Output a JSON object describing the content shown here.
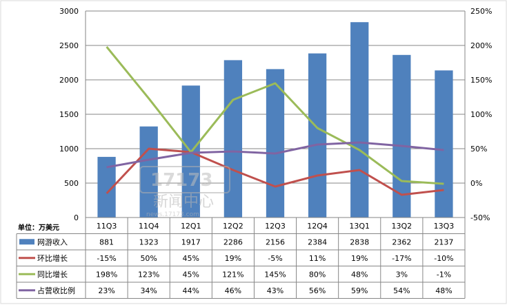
{
  "chart_data": {
    "type": "bar",
    "unit_label": "单位：万美元",
    "categories": [
      "11Q3",
      "11Q4",
      "12Q1",
      "12Q2",
      "12Q3",
      "12Q4",
      "13Q1",
      "13Q2",
      "13Q3"
    ],
    "y_left": {
      "min": 0,
      "max": 3000,
      "ticks": [
        "0",
        "500",
        "1000",
        "1500",
        "2000",
        "2500",
        "3000"
      ]
    },
    "y_right": {
      "min": -50,
      "max": 250,
      "ticks": [
        "-50%",
        "0%",
        "50%",
        "100%",
        "150%",
        "200%",
        "250%"
      ]
    },
    "series": [
      {
        "name": "网游收入",
        "kind": "bar",
        "axis": "left",
        "color": "#4f81bd",
        "values": [
          881,
          1323,
          1917,
          2286,
          2156,
          2384,
          2838,
          2362,
          2137
        ],
        "labels": [
          "881",
          "1323",
          "1917",
          "2286",
          "2156",
          "2384",
          "2838",
          "2362",
          "2137"
        ]
      },
      {
        "name": "环比增长",
        "kind": "line",
        "axis": "right",
        "color": "#c0504d",
        "values": [
          -15,
          50,
          45,
          19,
          -5,
          11,
          19,
          -17,
          -10
        ],
        "labels": [
          "-15%",
          "50%",
          "45%",
          "19%",
          "-5%",
          "11%",
          "19%",
          "-17%",
          "-10%"
        ]
      },
      {
        "name": "同比增长",
        "kind": "line",
        "axis": "right",
        "color": "#9bbb59",
        "values": [
          198,
          123,
          45,
          121,
          145,
          80,
          48,
          3,
          -1
        ],
        "labels": [
          "198%",
          "123%",
          "45%",
          "121%",
          "145%",
          "80%",
          "48%",
          "3%",
          "-1%"
        ]
      },
      {
        "name": "占营收比例",
        "kind": "line",
        "axis": "right",
        "color": "#8064a2",
        "values": [
          23,
          34,
          44,
          46,
          43,
          56,
          59,
          54,
          48
        ],
        "labels": [
          "23%",
          "34%",
          "44%",
          "46%",
          "43%",
          "56%",
          "59%",
          "54%",
          "48%"
        ]
      }
    ],
    "grid": true,
    "legend": "table-below"
  },
  "watermark": {
    "text": "新闻中心",
    "url": "news.17173.com"
  }
}
